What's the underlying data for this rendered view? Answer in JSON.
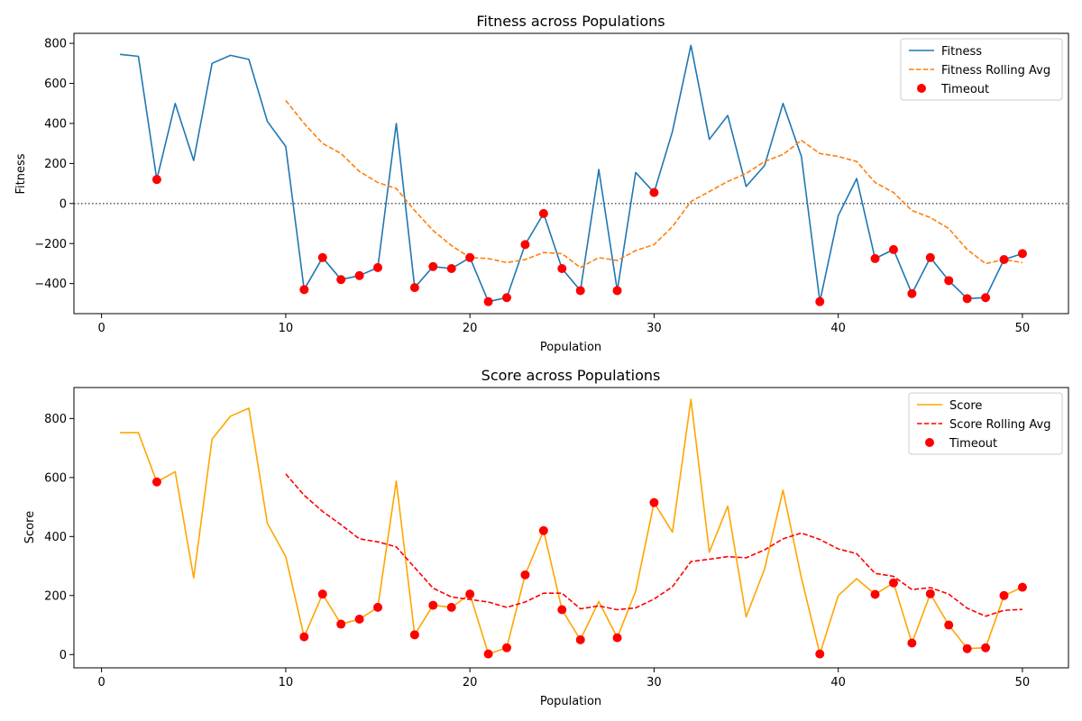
{
  "chart_data": [
    {
      "type": "line",
      "title": "Fitness across Populations",
      "xlabel": "Population",
      "ylabel": "Fitness",
      "xlim": [
        -1.5,
        52.5
      ],
      "ylim": [
        -550,
        850
      ],
      "xticks": [
        0,
        10,
        20,
        30,
        40,
        50
      ],
      "yticks": [
        -400,
        -200,
        0,
        200,
        400,
        600,
        800
      ],
      "reference_line": 0,
      "legend_position": "top-right",
      "colors": {
        "main": "#1f77b4",
        "rolling": "#ff7f0e",
        "timeout": "#ff0000"
      },
      "x": [
        1,
        2,
        3,
        4,
        5,
        6,
        7,
        8,
        9,
        10,
        11,
        12,
        13,
        14,
        15,
        16,
        17,
        18,
        19,
        20,
        21,
        22,
        23,
        24,
        25,
        26,
        27,
        28,
        29,
        30,
        31,
        32,
        33,
        34,
        35,
        36,
        37,
        38,
        39,
        40,
        41,
        42,
        43,
        44,
        45,
        46,
        47,
        48,
        49,
        50
      ],
      "series": [
        {
          "name": "Fitness",
          "style": "solid",
          "values": [
            745,
            735,
            120,
            500,
            215,
            700,
            740,
            720,
            410,
            285,
            -430,
            -270,
            -380,
            -360,
            -320,
            400,
            -420,
            -315,
            -325,
            -270,
            -490,
            -470,
            -205,
            -50,
            -325,
            -435,
            170,
            -435,
            155,
            55,
            360,
            790,
            320,
            440,
            85,
            190,
            500,
            235,
            -490,
            -60,
            125,
            -275,
            -230,
            -450,
            -270,
            -385,
            -475,
            -470,
            -280,
            -250
          ]
        },
        {
          "name": "Fitness Rolling Avg",
          "style": "dashed",
          "x": [
            10,
            11,
            12,
            13,
            14,
            15,
            16,
            17,
            18,
            19,
            20,
            21,
            22,
            23,
            24,
            25,
            26,
            27,
            28,
            29,
            30,
            31,
            32,
            33,
            34,
            35,
            36,
            37,
            38,
            39,
            40,
            41,
            42,
            43,
            44,
            45,
            46,
            47,
            48,
            49,
            50
          ],
          "values": [
            515,
            400,
            300,
            250,
            160,
            105,
            75,
            -35,
            -135,
            -210,
            -270,
            -275,
            -295,
            -280,
            -245,
            -250,
            -320,
            -270,
            -285,
            -235,
            -205,
            -115,
            10,
            60,
            110,
            150,
            210,
            245,
            315,
            250,
            235,
            210,
            105,
            55,
            -35,
            -70,
            -125,
            -230,
            -300,
            -280,
            -295
          ]
        },
        {
          "name": "Timeout",
          "style": "scatter",
          "x": [
            3,
            11,
            12,
            13,
            14,
            15,
            17,
            18,
            19,
            20,
            21,
            22,
            23,
            24,
            25,
            26,
            28,
            30,
            39,
            42,
            43,
            44,
            45,
            46,
            47,
            48,
            49,
            50
          ],
          "values": [
            120,
            -430,
            -270,
            -380,
            -360,
            -320,
            -420,
            -315,
            -325,
            -270,
            -490,
            -470,
            -205,
            -50,
            -325,
            -435,
            -435,
            55,
            -490,
            -275,
            -230,
            -450,
            -270,
            -385,
            -475,
            -470,
            -280,
            -250
          ]
        }
      ]
    },
    {
      "type": "line",
      "title": "Score across Populations",
      "xlabel": "Population",
      "ylabel": "Score",
      "xlim": [
        -1.5,
        52.5
      ],
      "ylim": [
        -45,
        905
      ],
      "xticks": [
        0,
        10,
        20,
        30,
        40,
        50
      ],
      "yticks": [
        0,
        200,
        400,
        600,
        800
      ],
      "legend_position": "top-right",
      "colors": {
        "main": "#ffa500",
        "rolling": "#ff0000",
        "timeout": "#ff0000"
      },
      "x": [
        1,
        2,
        3,
        4,
        5,
        6,
        7,
        8,
        9,
        10,
        11,
        12,
        13,
        14,
        15,
        16,
        17,
        18,
        19,
        20,
        21,
        22,
        23,
        24,
        25,
        26,
        27,
        28,
        29,
        30,
        31,
        32,
        33,
        34,
        35,
        36,
        37,
        38,
        39,
        40,
        41,
        42,
        43,
        44,
        45,
        46,
        47,
        48,
        49,
        50
      ],
      "series": [
        {
          "name": "Score",
          "style": "solid",
          "values": [
            752,
            752,
            585,
            620,
            260,
            730,
            808,
            835,
            445,
            332,
            60,
            205,
            103,
            120,
            160,
            588,
            67,
            167,
            160,
            205,
            2,
            23,
            270,
            420,
            152,
            50,
            180,
            57,
            215,
            515,
            415,
            865,
            347,
            503,
            128,
            290,
            557,
            260,
            2,
            200,
            257,
            204,
            243,
            39,
            206,
            100,
            20,
            23,
            200,
            228
          ]
        },
        {
          "name": "Score Rolling Avg",
          "style": "dashed",
          "x": [
            10,
            11,
            12,
            13,
            14,
            15,
            16,
            17,
            18,
            19,
            20,
            21,
            22,
            23,
            24,
            25,
            26,
            27,
            28,
            29,
            30,
            31,
            32,
            33,
            34,
            35,
            36,
            37,
            38,
            39,
            40,
            41,
            42,
            43,
            44,
            45,
            46,
            47,
            48,
            49,
            50
          ],
          "values": [
            612,
            540,
            485,
            440,
            392,
            382,
            365,
            295,
            225,
            195,
            187,
            178,
            160,
            178,
            208,
            208,
            155,
            165,
            152,
            158,
            188,
            230,
            315,
            323,
            332,
            328,
            355,
            392,
            412,
            390,
            358,
            342,
            275,
            265,
            220,
            227,
            205,
            157,
            130,
            150,
            153
          ]
        },
        {
          "name": "Timeout",
          "style": "scatter",
          "x": [
            3,
            11,
            12,
            13,
            14,
            15,
            17,
            18,
            19,
            20,
            21,
            22,
            23,
            24,
            25,
            26,
            28,
            30,
            39,
            42,
            43,
            44,
            45,
            46,
            47,
            48,
            49,
            50
          ],
          "values": [
            585,
            60,
            205,
            103,
            120,
            160,
            67,
            167,
            160,
            205,
            2,
            23,
            270,
            420,
            152,
            50,
            57,
            515,
            2,
            204,
            243,
            39,
            206,
            100,
            20,
            23,
            200,
            228
          ]
        }
      ]
    }
  ]
}
